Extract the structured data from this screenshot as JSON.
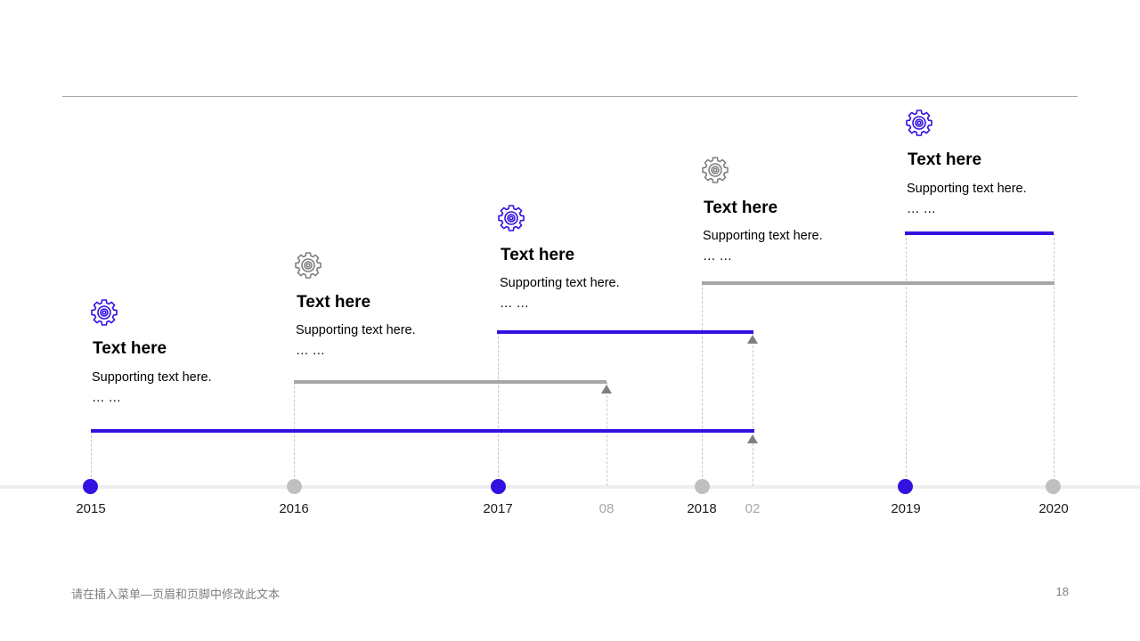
{
  "colors": {
    "accent": "#3311e0",
    "gray": "#a6a6a6",
    "dark_gray": "#808080"
  },
  "timeline": {
    "years": [
      "2015",
      "2016",
      "2017",
      "2018",
      "2019",
      "2020"
    ],
    "months": [
      "08",
      "02"
    ]
  },
  "milestones": [
    {
      "title": "Text here",
      "body": "Supporting text here.",
      "ellipsis": "… …",
      "icon": "gear-icon",
      "color": "#3311e0"
    },
    {
      "title": "Text here",
      "body": "Supporting text here.",
      "ellipsis": "… …",
      "icon": "gear-icon",
      "color": "#808080"
    },
    {
      "title": "Text here",
      "body": "Supporting text here.",
      "ellipsis": "… …",
      "icon": "gear-icon",
      "color": "#3311e0"
    },
    {
      "title": "Text here",
      "body": "Supporting text here.",
      "ellipsis": "… …",
      "icon": "gear-icon",
      "color": "#808080"
    },
    {
      "title": "Text here",
      "body": "Supporting text here.",
      "ellipsis": "… …",
      "icon": "gear-icon",
      "color": "#3311e0"
    }
  ],
  "footer": {
    "text": "请在插入菜单—页眉和页脚中修改此文本",
    "page_number": "18"
  }
}
